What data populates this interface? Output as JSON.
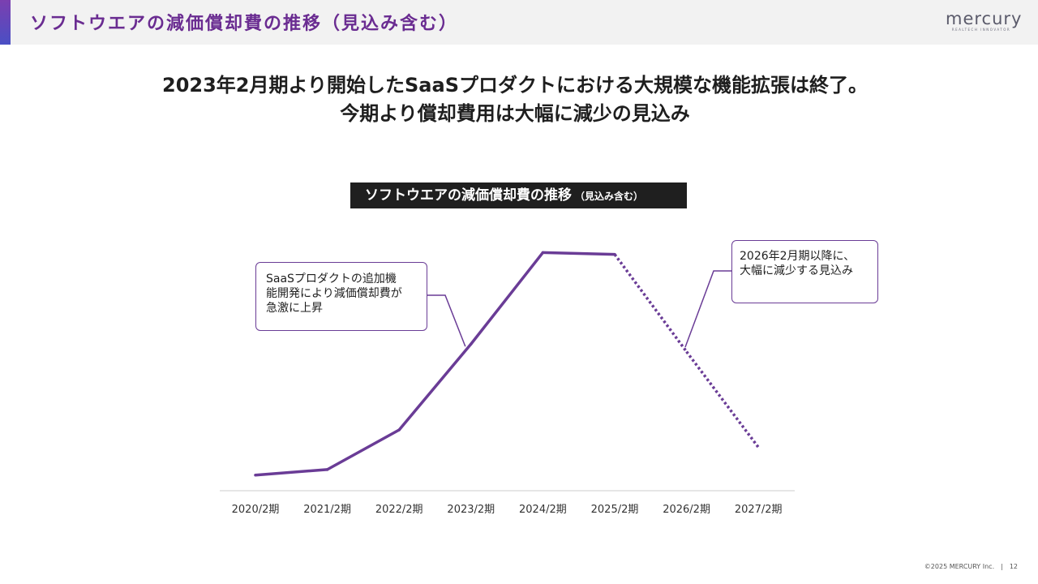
{
  "header": {
    "title": "ソフトウエアの減価償却費の推移（見込み含む）",
    "logo_text": "mercury",
    "logo_tagline": "REALTECH INNOVATOR"
  },
  "headline": {
    "line1": "2023年2月期より開始したSaaSプロダクトにおける大規模な機能拡張は終了。",
    "line2": "今期より償却費用は大幅に減少の見込み"
  },
  "chart_title": {
    "main": "ソフトウエアの減価償却費の推移",
    "sub": "（見込み含む）"
  },
  "callouts": {
    "left": [
      "SaaSプロダクトの追加機",
      "能開発により減価償却費が",
      "急激に上昇"
    ],
    "right": [
      "2026年2月期以降に、",
      "大幅に減少する見込み"
    ]
  },
  "footer": {
    "copyright": "©2025 MERCURY Inc.",
    "separator": "|",
    "page": "12"
  },
  "colors": {
    "accent": "#6a2c91",
    "line": "#6a3c96",
    "axis": "#cccccc",
    "title_box": "#1f1f1f"
  },
  "chart_data": {
    "type": "line",
    "title": "ソフトウエアの減価償却費の推移（見込み含む）",
    "categories": [
      "2020/2期",
      "2021/2期",
      "2022/2期",
      "2023/2期",
      "2024/2期",
      "2025/2期",
      "2026/2期",
      "2027/2期"
    ],
    "series": [
      {
        "values": [
          1.0,
          2.6,
          14.0,
          38.7,
          65.0,
          64.5,
          36.5,
          9.0
        ],
        "style": [
          "solid",
          "solid",
          "solid",
          "solid",
          "solid",
          "solid",
          "dotted",
          "dotted"
        ]
      }
    ],
    "ylim": [
      -3.5,
      70
    ],
    "y_axis_labels": false,
    "grid": false,
    "legend": "none",
    "note": "no y-axis values printed; values estimated relative to plot area"
  }
}
